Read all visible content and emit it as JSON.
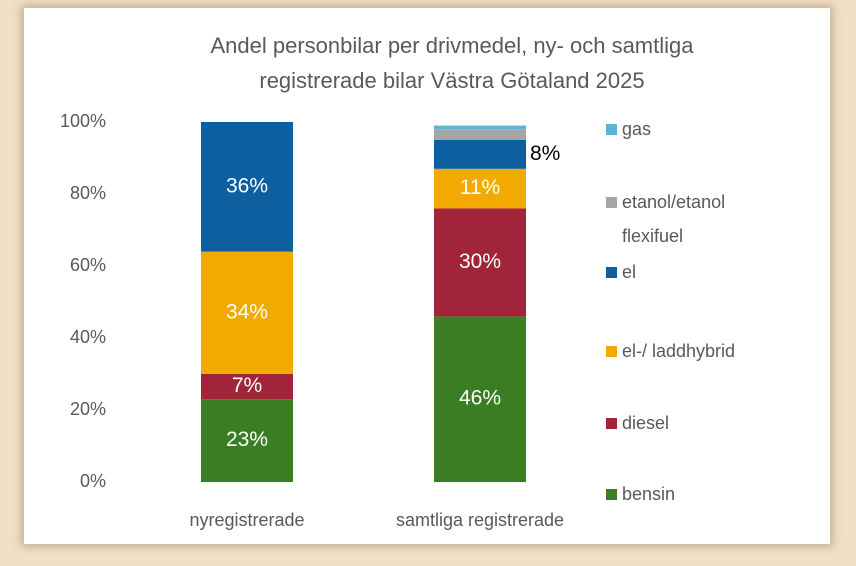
{
  "chart_data": {
    "type": "stacked_bar",
    "title": [
      "Andel personbilar per drivmedel, ny- och samtliga",
      "registrerade bilar Västra Götaland 2025"
    ],
    "categories": [
      "nyregistrerade",
      "samtliga registrerade"
    ],
    "series": [
      {
        "name": "bensin",
        "color": "#3b7d23",
        "values": [
          23,
          46
        ],
        "value_labels": [
          "23%",
          "46%"
        ]
      },
      {
        "name": "diesel",
        "color": "#a1243b",
        "values": [
          7,
          30
        ],
        "value_labels": [
          "7%",
          "30%"
        ]
      },
      {
        "name": "el-/ laddhybrid",
        "color": "#f2a900",
        "values": [
          34,
          11
        ],
        "value_labels": [
          "34%",
          "11%"
        ]
      },
      {
        "name": "el",
        "color": "#0d5fa0",
        "values": [
          36,
          8
        ],
        "value_labels": [
          "36%",
          "8%"
        ]
      },
      {
        "name": "etanol/etanol flexifuel",
        "color": "#a5a5a5",
        "values": [
          0,
          3
        ],
        "value_labels": [
          null,
          null
        ]
      },
      {
        "name": "gas",
        "color": "#5cb3d8",
        "values": [
          0,
          1
        ],
        "value_labels": [
          null,
          null
        ]
      }
    ],
    "ylim": [
      0,
      100
    ],
    "yticks": [
      {
        "value": 0,
        "label": "0%"
      },
      {
        "value": 20,
        "label": "20%"
      },
      {
        "value": 40,
        "label": "40%"
      },
      {
        "value": 60,
        "label": "60%"
      },
      {
        "value": 80,
        "label": "80%"
      },
      {
        "value": 100,
        "label": "100%"
      }
    ],
    "legend": "right"
  }
}
